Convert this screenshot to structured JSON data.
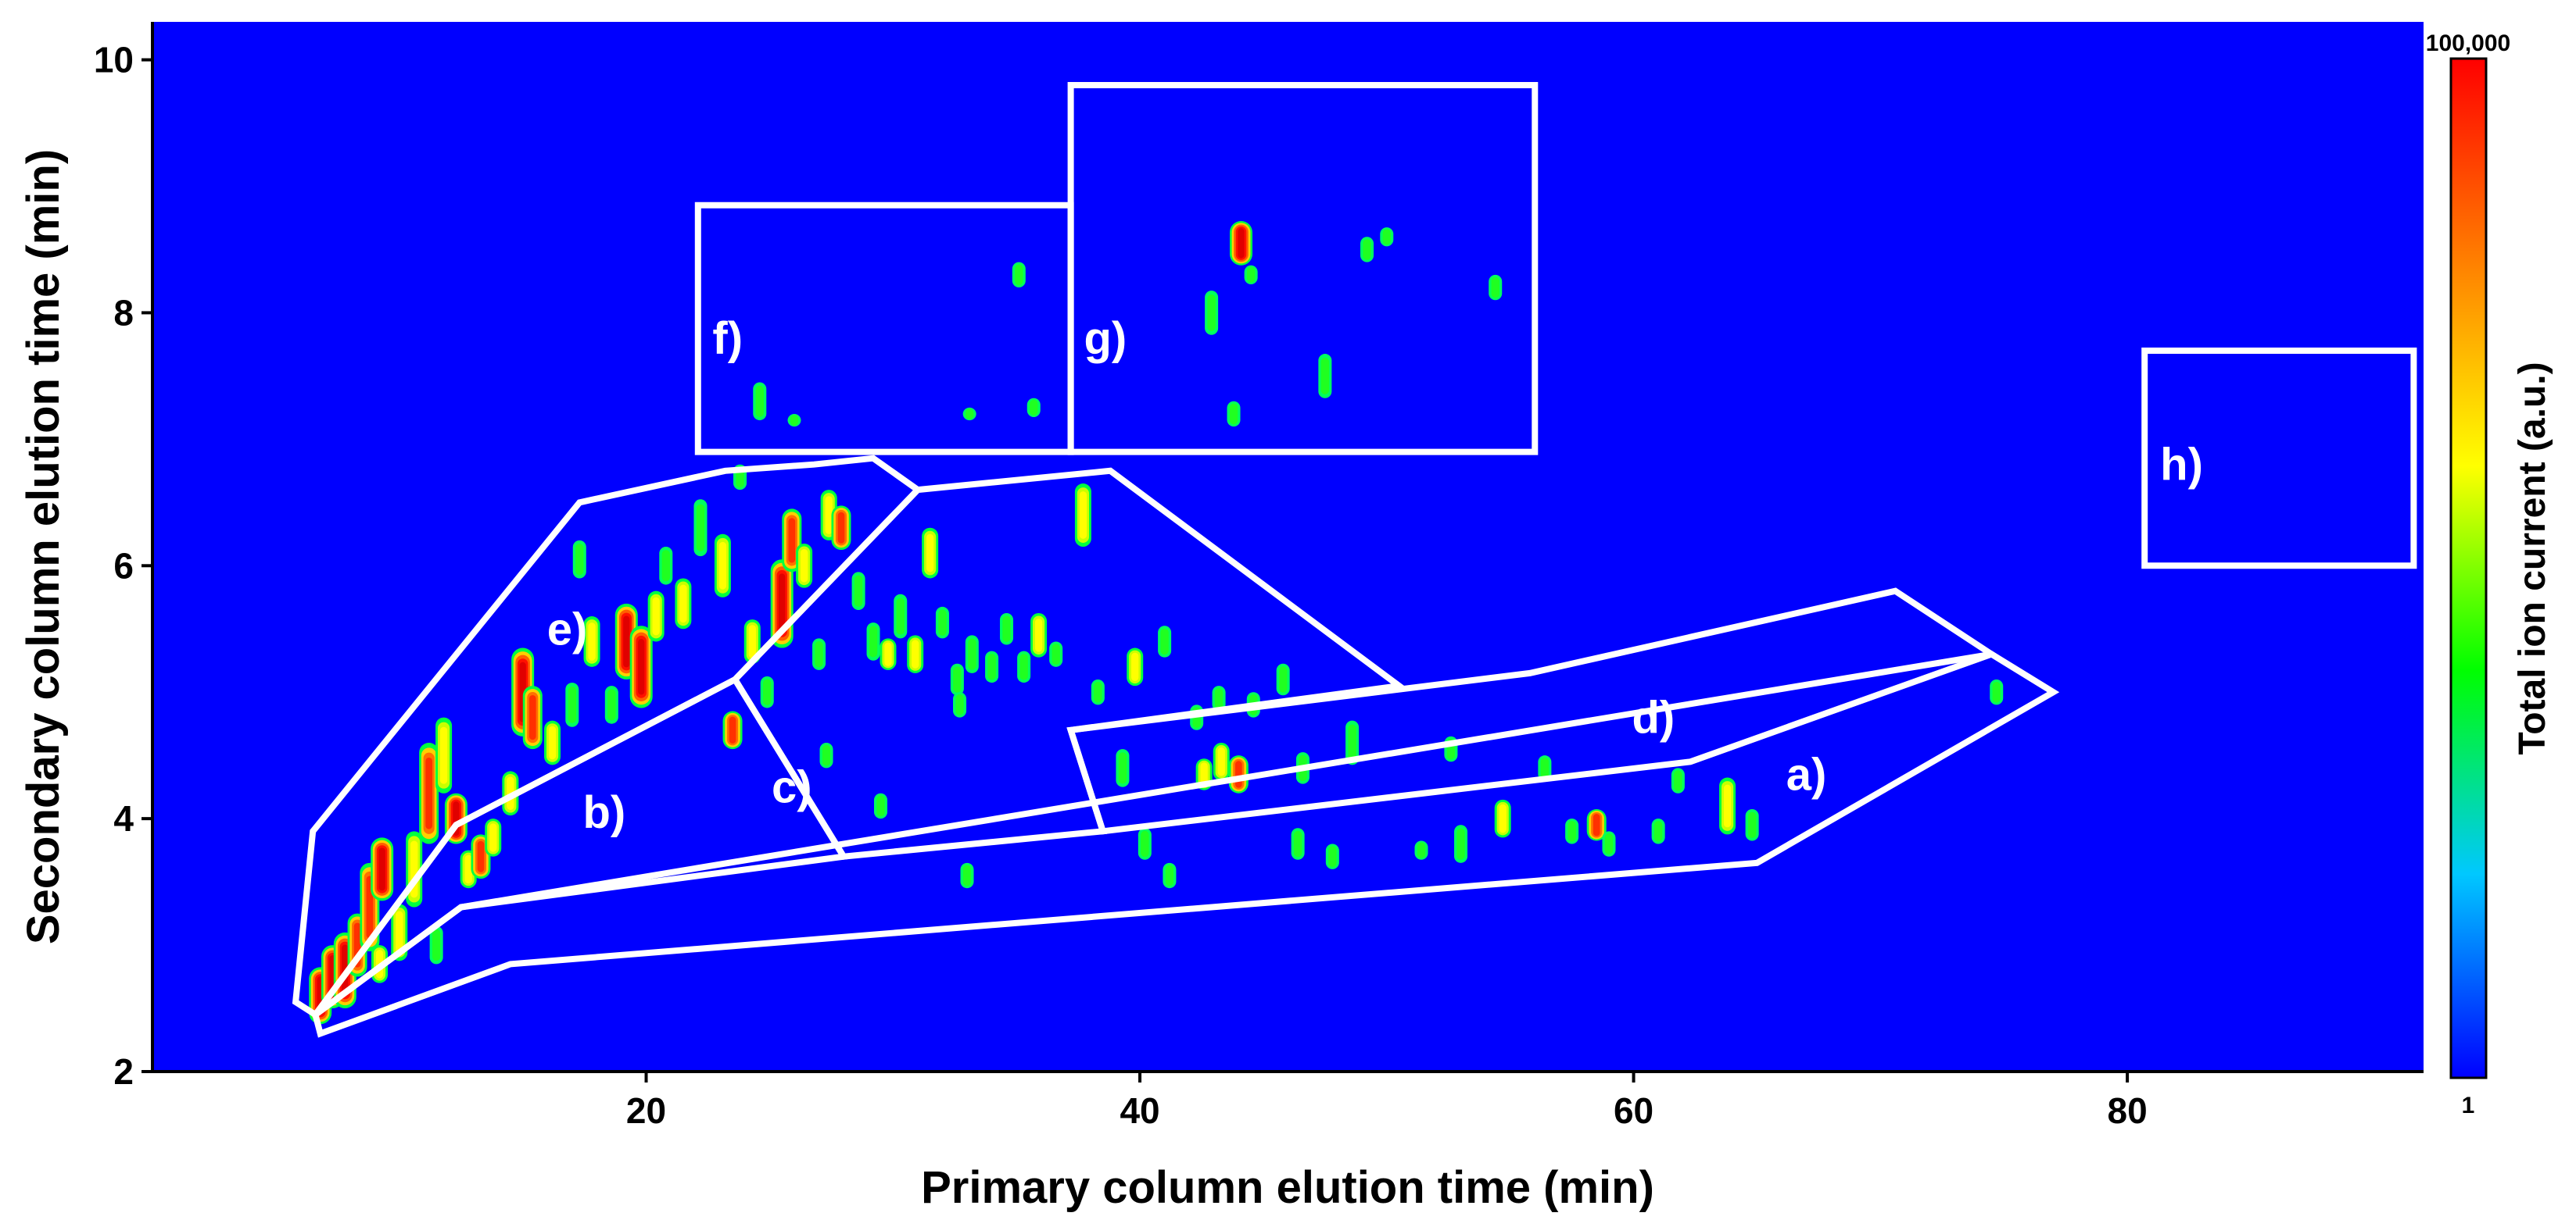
{
  "chart_data": {
    "type": "heatmap",
    "subtype": "gcxgc-contour",
    "xlabel": "Primary column elution time (min)",
    "ylabel": "Secondary column elution time (min)",
    "xlim": [
      0,
      92
    ],
    "ylim": [
      2,
      10.3
    ],
    "x_ticks": [
      20,
      40,
      60,
      80
    ],
    "y_ticks": [
      2,
      4,
      6,
      8,
      10
    ],
    "background_color": "#0000ff",
    "colorbar": {
      "label": "Total ion current (a.u.)",
      "max_label": "100,000",
      "min_label": "1",
      "colors": [
        "#0000ff",
        "#00c8ff",
        "#00ff00",
        "#ffff00",
        "#ff8000",
        "#ff0000"
      ]
    },
    "regions": [
      {
        "label": "a)",
        "label_x": 67,
        "label_y": 4.35,
        "points": [
          [
            6.8,
            2.3
          ],
          [
            14.5,
            2.85
          ],
          [
            65,
            3.65
          ],
          [
            77,
            5
          ],
          [
            74.5,
            5.3
          ],
          [
            12.5,
            3.3
          ],
          [
            6.6,
            2.45
          ]
        ]
      },
      {
        "label": "b)",
        "label_x": 18.3,
        "label_y": 4.05,
        "points": [
          [
            6.6,
            2.45
          ],
          [
            12.5,
            3.3
          ],
          [
            28,
            3.7
          ],
          [
            23.6,
            5.1
          ],
          [
            12.3,
            3.95
          ]
        ]
      },
      {
        "label": "c)",
        "label_x": 25.9,
        "label_y": 4.25,
        "points": [
          [
            23.6,
            5.1
          ],
          [
            31,
            6.6
          ],
          [
            38.8,
            6.75
          ],
          [
            50.5,
            5.05
          ],
          [
            37.2,
            4.7
          ],
          [
            38.5,
            3.9
          ],
          [
            28,
            3.7
          ]
        ]
      },
      {
        "label": "d)",
        "label_x": 60.8,
        "label_y": 4.8,
        "points": [
          [
            37.2,
            4.7
          ],
          [
            55.8,
            5.15
          ],
          [
            70.6,
            5.8
          ],
          [
            74.5,
            5.3
          ],
          [
            62.3,
            4.45
          ],
          [
            38.5,
            3.9
          ]
        ]
      },
      {
        "label": "e)",
        "label_x": 16.8,
        "label_y": 5.5,
        "points": [
          [
            5.8,
            2.55
          ],
          [
            6.6,
            2.45
          ],
          [
            12.3,
            3.95
          ],
          [
            23.6,
            5.1
          ],
          [
            31,
            6.6
          ],
          [
            29.2,
            6.85
          ],
          [
            26.8,
            6.8
          ],
          [
            23.2,
            6.75
          ],
          [
            17.3,
            6.5
          ],
          [
            6.5,
            3.9
          ]
        ]
      },
      {
        "label": "f)",
        "label_x": 23.3,
        "label_y": 7.8,
        "points": [
          [
            22.1,
            6.9
          ],
          [
            37.2,
            6.9
          ],
          [
            37.2,
            8.85
          ],
          [
            22.1,
            8.85
          ]
        ]
      },
      {
        "label": "g)",
        "label_x": 38.6,
        "label_y": 7.8,
        "points": [
          [
            37.2,
            6.9
          ],
          [
            56,
            6.9
          ],
          [
            56,
            9.8
          ],
          [
            37.2,
            9.8
          ]
        ]
      },
      {
        "label": "h)",
        "label_x": 82.2,
        "label_y": 6.8,
        "points": [
          [
            80.7,
            6.0
          ],
          [
            91.6,
            6.0
          ],
          [
            91.6,
            7.7
          ],
          [
            80.7,
            7.7
          ]
        ]
      }
    ],
    "peaks": [
      {
        "x": 6.8,
        "y": 2.6,
        "h": 0.45,
        "i": 5
      },
      {
        "x": 7.3,
        "y": 2.75,
        "h": 0.5,
        "i": 5
      },
      {
        "x": 7.8,
        "y": 2.8,
        "h": 0.6,
        "i": 5
      },
      {
        "x": 8.3,
        "y": 3.0,
        "h": 0.5,
        "i": 4
      },
      {
        "x": 8.8,
        "y": 3.3,
        "h": 0.7,
        "i": 4
      },
      {
        "x": 9.3,
        "y": 3.6,
        "h": 0.5,
        "i": 5
      },
      {
        "x": 9.2,
        "y": 2.85,
        "h": 0.3,
        "i": 3
      },
      {
        "x": 10.0,
        "y": 3.1,
        "h": 0.45,
        "i": 3
      },
      {
        "x": 10.6,
        "y": 3.6,
        "h": 0.6,
        "i": 3
      },
      {
        "x": 11.2,
        "y": 4.2,
        "h": 0.8,
        "i": 4
      },
      {
        "x": 11.8,
        "y": 4.5,
        "h": 0.6,
        "i": 3
      },
      {
        "x": 12.3,
        "y": 4.0,
        "h": 0.4,
        "i": 5
      },
      {
        "x": 11.5,
        "y": 3.0,
        "h": 0.3,
        "i": 2
      },
      {
        "x": 12.8,
        "y": 3.6,
        "h": 0.3,
        "i": 3
      },
      {
        "x": 13.3,
        "y": 3.7,
        "h": 0.35,
        "i": 4
      },
      {
        "x": 13.8,
        "y": 3.85,
        "h": 0.3,
        "i": 3
      },
      {
        "x": 14.5,
        "y": 4.2,
        "h": 0.35,
        "i": 3
      },
      {
        "x": 15.0,
        "y": 5.0,
        "h": 0.7,
        "i": 5
      },
      {
        "x": 15.4,
        "y": 4.8,
        "h": 0.5,
        "i": 4
      },
      {
        "x": 16.2,
        "y": 4.6,
        "h": 0.35,
        "i": 3
      },
      {
        "x": 17.0,
        "y": 4.9,
        "h": 0.35,
        "i": 2
      },
      {
        "x": 17.3,
        "y": 6.05,
        "h": 0.3,
        "i": 2
      },
      {
        "x": 17.8,
        "y": 5.4,
        "h": 0.4,
        "i": 3
      },
      {
        "x": 18.6,
        "y": 4.9,
        "h": 0.3,
        "i": 2
      },
      {
        "x": 19.2,
        "y": 5.4,
        "h": 0.6,
        "i": 5
      },
      {
        "x": 19.8,
        "y": 5.2,
        "h": 0.65,
        "i": 5
      },
      {
        "x": 20.4,
        "y": 5.6,
        "h": 0.4,
        "i": 3
      },
      {
        "x": 20.8,
        "y": 6.0,
        "h": 0.3,
        "i": 2
      },
      {
        "x": 21.5,
        "y": 5.7,
        "h": 0.4,
        "i": 3
      },
      {
        "x": 22.2,
        "y": 6.3,
        "h": 0.45,
        "i": 2
      },
      {
        "x": 23.1,
        "y": 6.0,
        "h": 0.5,
        "i": 3
      },
      {
        "x": 23.5,
        "y": 4.7,
        "h": 0.3,
        "i": 4
      },
      {
        "x": 23.8,
        "y": 6.7,
        "h": 0.2,
        "i": 2
      },
      {
        "x": 24.3,
        "y": 5.4,
        "h": 0.35,
        "i": 3
      },
      {
        "x": 24.9,
        "y": 5.0,
        "h": 0.25,
        "i": 2
      },
      {
        "x": 25.5,
        "y": 5.7,
        "h": 0.7,
        "i": 5
      },
      {
        "x": 25.9,
        "y": 6.2,
        "h": 0.5,
        "i": 4
      },
      {
        "x": 26.4,
        "y": 6.0,
        "h": 0.35,
        "i": 3
      },
      {
        "x": 27.0,
        "y": 5.3,
        "h": 0.25,
        "i": 2
      },
      {
        "x": 27.4,
        "y": 6.4,
        "h": 0.4,
        "i": 3
      },
      {
        "x": 27.9,
        "y": 6.3,
        "h": 0.35,
        "i": 4
      },
      {
        "x": 28.6,
        "y": 5.8,
        "h": 0.3,
        "i": 2
      },
      {
        "x": 29.2,
        "y": 5.4,
        "h": 0.3,
        "i": 2
      },
      {
        "x": 29.8,
        "y": 5.3,
        "h": 0.25,
        "i": 3
      },
      {
        "x": 30.3,
        "y": 5.6,
        "h": 0.35,
        "i": 2
      },
      {
        "x": 30.9,
        "y": 5.3,
        "h": 0.3,
        "i": 3
      },
      {
        "x": 31.5,
        "y": 6.1,
        "h": 0.4,
        "i": 3
      },
      {
        "x": 32.0,
        "y": 5.55,
        "h": 0.25,
        "i": 2
      },
      {
        "x": 32.6,
        "y": 5.1,
        "h": 0.25,
        "i": 2
      },
      {
        "x": 33.2,
        "y": 5.3,
        "h": 0.3,
        "i": 2
      },
      {
        "x": 34.0,
        "y": 5.2,
        "h": 0.25,
        "i": 2
      },
      {
        "x": 34.6,
        "y": 5.5,
        "h": 0.25,
        "i": 2
      },
      {
        "x": 35.3,
        "y": 5.2,
        "h": 0.25,
        "i": 2
      },
      {
        "x": 35.9,
        "y": 5.45,
        "h": 0.35,
        "i": 3
      },
      {
        "x": 36.6,
        "y": 5.3,
        "h": 0.2,
        "i": 2
      },
      {
        "x": 37.7,
        "y": 6.4,
        "h": 0.5,
        "i": 3
      },
      {
        "x": 38.3,
        "y": 5.0,
        "h": 0.2,
        "i": 2
      },
      {
        "x": 39.8,
        "y": 5.2,
        "h": 0.3,
        "i": 3
      },
      {
        "x": 41.0,
        "y": 5.4,
        "h": 0.25,
        "i": 2
      },
      {
        "x": 42.3,
        "y": 4.8,
        "h": 0.2,
        "i": 2
      },
      {
        "x": 43.2,
        "y": 4.95,
        "h": 0.2,
        "i": 2
      },
      {
        "x": 44.6,
        "y": 4.9,
        "h": 0.2,
        "i": 2
      },
      {
        "x": 45.8,
        "y": 5.1,
        "h": 0.25,
        "i": 2
      },
      {
        "x": 27.3,
        "y": 4.5,
        "h": 0.2,
        "i": 2
      },
      {
        "x": 29.5,
        "y": 4.1,
        "h": 0.2,
        "i": 2
      },
      {
        "x": 32.7,
        "y": 4.9,
        "h": 0.2,
        "i": 2
      },
      {
        "x": 39.3,
        "y": 4.4,
        "h": 0.3,
        "i": 2
      },
      {
        "x": 42.6,
        "y": 4.35,
        "h": 0.25,
        "i": 3
      },
      {
        "x": 43.3,
        "y": 4.45,
        "h": 0.3,
        "i": 3
      },
      {
        "x": 44.0,
        "y": 4.35,
        "h": 0.3,
        "i": 4
      },
      {
        "x": 46.6,
        "y": 4.4,
        "h": 0.25,
        "i": 2
      },
      {
        "x": 48.6,
        "y": 4.6,
        "h": 0.35,
        "i": 2
      },
      {
        "x": 52.6,
        "y": 4.55,
        "h": 0.2,
        "i": 2
      },
      {
        "x": 56.4,
        "y": 4.4,
        "h": 0.2,
        "i": 2
      },
      {
        "x": 61.8,
        "y": 4.3,
        "h": 0.2,
        "i": 2
      },
      {
        "x": 74.7,
        "y": 5.0,
        "h": 0.2,
        "i": 2
      },
      {
        "x": 33.0,
        "y": 3.55,
        "h": 0.2,
        "i": 2
      },
      {
        "x": 40.2,
        "y": 3.8,
        "h": 0.25,
        "i": 2
      },
      {
        "x": 41.2,
        "y": 3.55,
        "h": 0.2,
        "i": 2
      },
      {
        "x": 46.4,
        "y": 3.8,
        "h": 0.25,
        "i": 2
      },
      {
        "x": 47.8,
        "y": 3.7,
        "h": 0.2,
        "i": 2
      },
      {
        "x": 51.4,
        "y": 3.75,
        "h": 0.15,
        "i": 2
      },
      {
        "x": 53.0,
        "y": 3.8,
        "h": 0.3,
        "i": 2
      },
      {
        "x": 54.7,
        "y": 4.0,
        "h": 0.3,
        "i": 3
      },
      {
        "x": 57.5,
        "y": 3.9,
        "h": 0.2,
        "i": 2
      },
      {
        "x": 58.5,
        "y": 3.95,
        "h": 0.25,
        "i": 4
      },
      {
        "x": 59.0,
        "y": 3.8,
        "h": 0.2,
        "i": 2
      },
      {
        "x": 61.0,
        "y": 3.9,
        "h": 0.2,
        "i": 2
      },
      {
        "x": 63.8,
        "y": 4.1,
        "h": 0.45,
        "i": 3
      },
      {
        "x": 64.8,
        "y": 3.95,
        "h": 0.25,
        "i": 2
      },
      {
        "x": 24.6,
        "y": 7.3,
        "h": 0.3,
        "i": 2
      },
      {
        "x": 26.0,
        "y": 7.15,
        "h": 0.1,
        "i": 2
      },
      {
        "x": 33.1,
        "y": 7.2,
        "h": 0.1,
        "i": 2
      },
      {
        "x": 35.1,
        "y": 8.3,
        "h": 0.2,
        "i": 2
      },
      {
        "x": 35.7,
        "y": 7.25,
        "h": 0.15,
        "i": 2
      },
      {
        "x": 42.9,
        "y": 8.0,
        "h": 0.35,
        "i": 2
      },
      {
        "x": 44.1,
        "y": 8.55,
        "h": 0.35,
        "i": 5
      },
      {
        "x": 44.5,
        "y": 8.3,
        "h": 0.15,
        "i": 2
      },
      {
        "x": 47.5,
        "y": 7.5,
        "h": 0.35,
        "i": 2
      },
      {
        "x": 49.2,
        "y": 8.5,
        "h": 0.2,
        "i": 2
      },
      {
        "x": 50.0,
        "y": 8.6,
        "h": 0.15,
        "i": 2
      },
      {
        "x": 54.4,
        "y": 8.2,
        "h": 0.2,
        "i": 2
      },
      {
        "x": 43.8,
        "y": 7.2,
        "h": 0.2,
        "i": 2
      }
    ]
  }
}
